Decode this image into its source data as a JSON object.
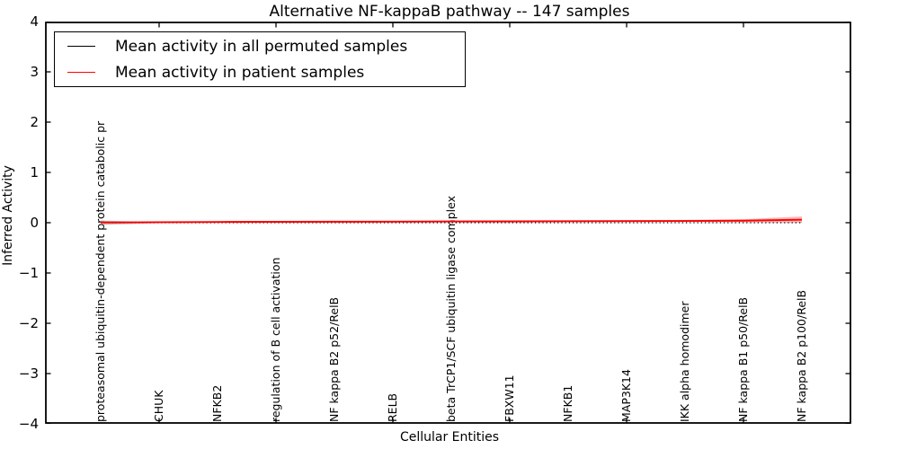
{
  "figure": {
    "title": "Alternative NF-kappaB pathway -- 147 samples",
    "xlabel": "Cellular Entities",
    "ylabel": "Inferred Activity"
  },
  "legend": {
    "entries": [
      {
        "label": "Mean activity in all permuted samples",
        "color": "#000000"
      },
      {
        "label": "Mean activity in patient samples",
        "color": "#ff0000"
      }
    ]
  },
  "chart_data": {
    "type": "line",
    "title": "Alternative NF-kappaB pathway -- 147 samples",
    "xlabel": "Cellular Entities",
    "ylabel": "Inferred Activity",
    "ylim": [
      -4,
      4
    ],
    "yticks": [
      4,
      3,
      2,
      1,
      0,
      -1,
      -2,
      -3,
      -4
    ],
    "grid": false,
    "legend_position": "upper left",
    "categories": [
      "proteasomal ubiquitin-dependent protein catabolic pr",
      "CHUK",
      "NFKB2",
      "regulation of B cell activation",
      "NF kappa B2 p52/RelB",
      "RELB",
      "beta TrCP1/SCF ubiquitin ligase complex",
      "FBXW11",
      "NFKB1",
      "MAP3K14",
      "IKK alpha homodimer",
      "NF kappa B1 p50/RelB",
      "NF kappa B2 p100/RelB"
    ],
    "series": [
      {
        "name": "Mean activity in all permuted samples",
        "color": "#000000",
        "line_style": "dotted",
        "values": [
          0,
          0,
          0,
          0,
          0,
          0,
          0,
          0,
          0,
          0,
          0,
          0,
          0
        ],
        "band_upper": [
          0.045,
          0.008,
          0.005,
          0.005,
          0.005,
          0.005,
          0.005,
          0.005,
          0.005,
          0.005,
          0.005,
          0.005,
          0.005
        ],
        "band_lower": [
          -0.045,
          -0.008,
          -0.005,
          -0.005,
          -0.005,
          -0.005,
          -0.005,
          -0.005,
          -0.005,
          -0.005,
          -0.005,
          -0.005,
          -0.005
        ],
        "band_color": "rgba(110,110,110,0.45)"
      },
      {
        "name": "Mean activity in patient samples",
        "color": "#ff0000",
        "line_style": "solid",
        "values": [
          0.005,
          0.01,
          0.015,
          0.018,
          0.02,
          0.022,
          0.025,
          0.027,
          0.03,
          0.032,
          0.035,
          0.04,
          0.06
        ],
        "band_upper": [
          0.012,
          0.022,
          0.03,
          0.033,
          0.035,
          0.038,
          0.04,
          0.042,
          0.045,
          0.05,
          0.055,
          0.07,
          0.125
        ],
        "band_lower": [
          -0.002,
          0.0,
          0.003,
          0.005,
          0.007,
          0.008,
          0.01,
          0.012,
          0.015,
          0.015,
          0.015,
          0.012,
          0.0
        ],
        "band_color": "rgba(255,50,50,0.35)"
      }
    ]
  }
}
